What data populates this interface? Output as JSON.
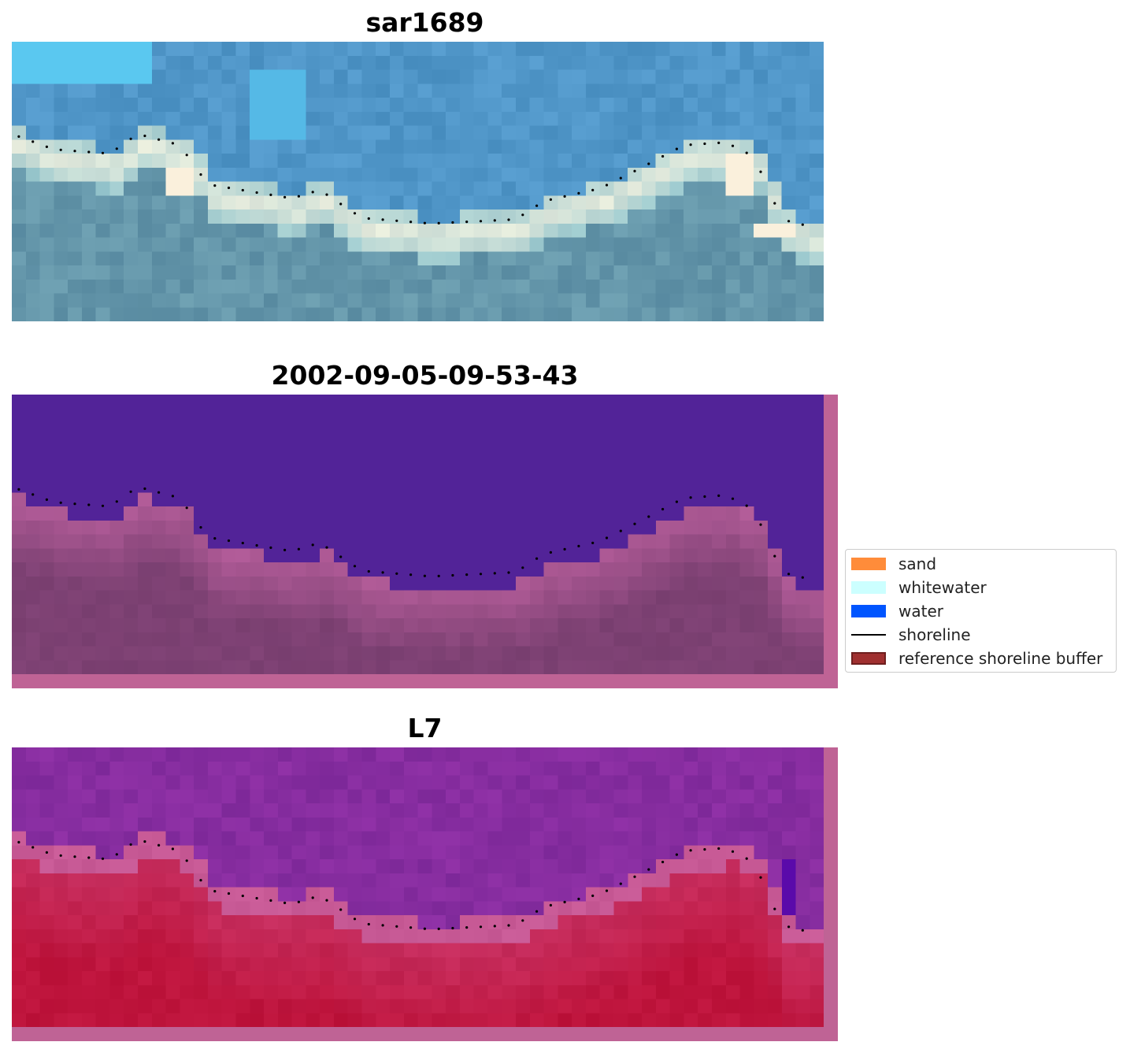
{
  "panels": [
    {
      "title": "sar1689",
      "kind": "rgb"
    },
    {
      "title": "2002-09-05-09-53-43",
      "kind": "classified"
    },
    {
      "title": "L7",
      "kind": "index"
    }
  ],
  "legend": {
    "items": [
      {
        "label": "sand",
        "color": "#ff8c3a",
        "type": "swatch"
      },
      {
        "label": "whitewater",
        "color": "#ccffff",
        "type": "swatch"
      },
      {
        "label": "water",
        "color": "#0055ff",
        "type": "swatch"
      },
      {
        "label": "shoreline",
        "color": "#000000",
        "type": "line"
      },
      {
        "label": "reference shoreline buffer",
        "color": "#a03030",
        "type": "swatch"
      }
    ]
  },
  "colors": {
    "classified_water": "#522398",
    "buffer_overlay": "#bf6395",
    "index_low": "#7a2aa0",
    "index_high": "#c0103a"
  }
}
